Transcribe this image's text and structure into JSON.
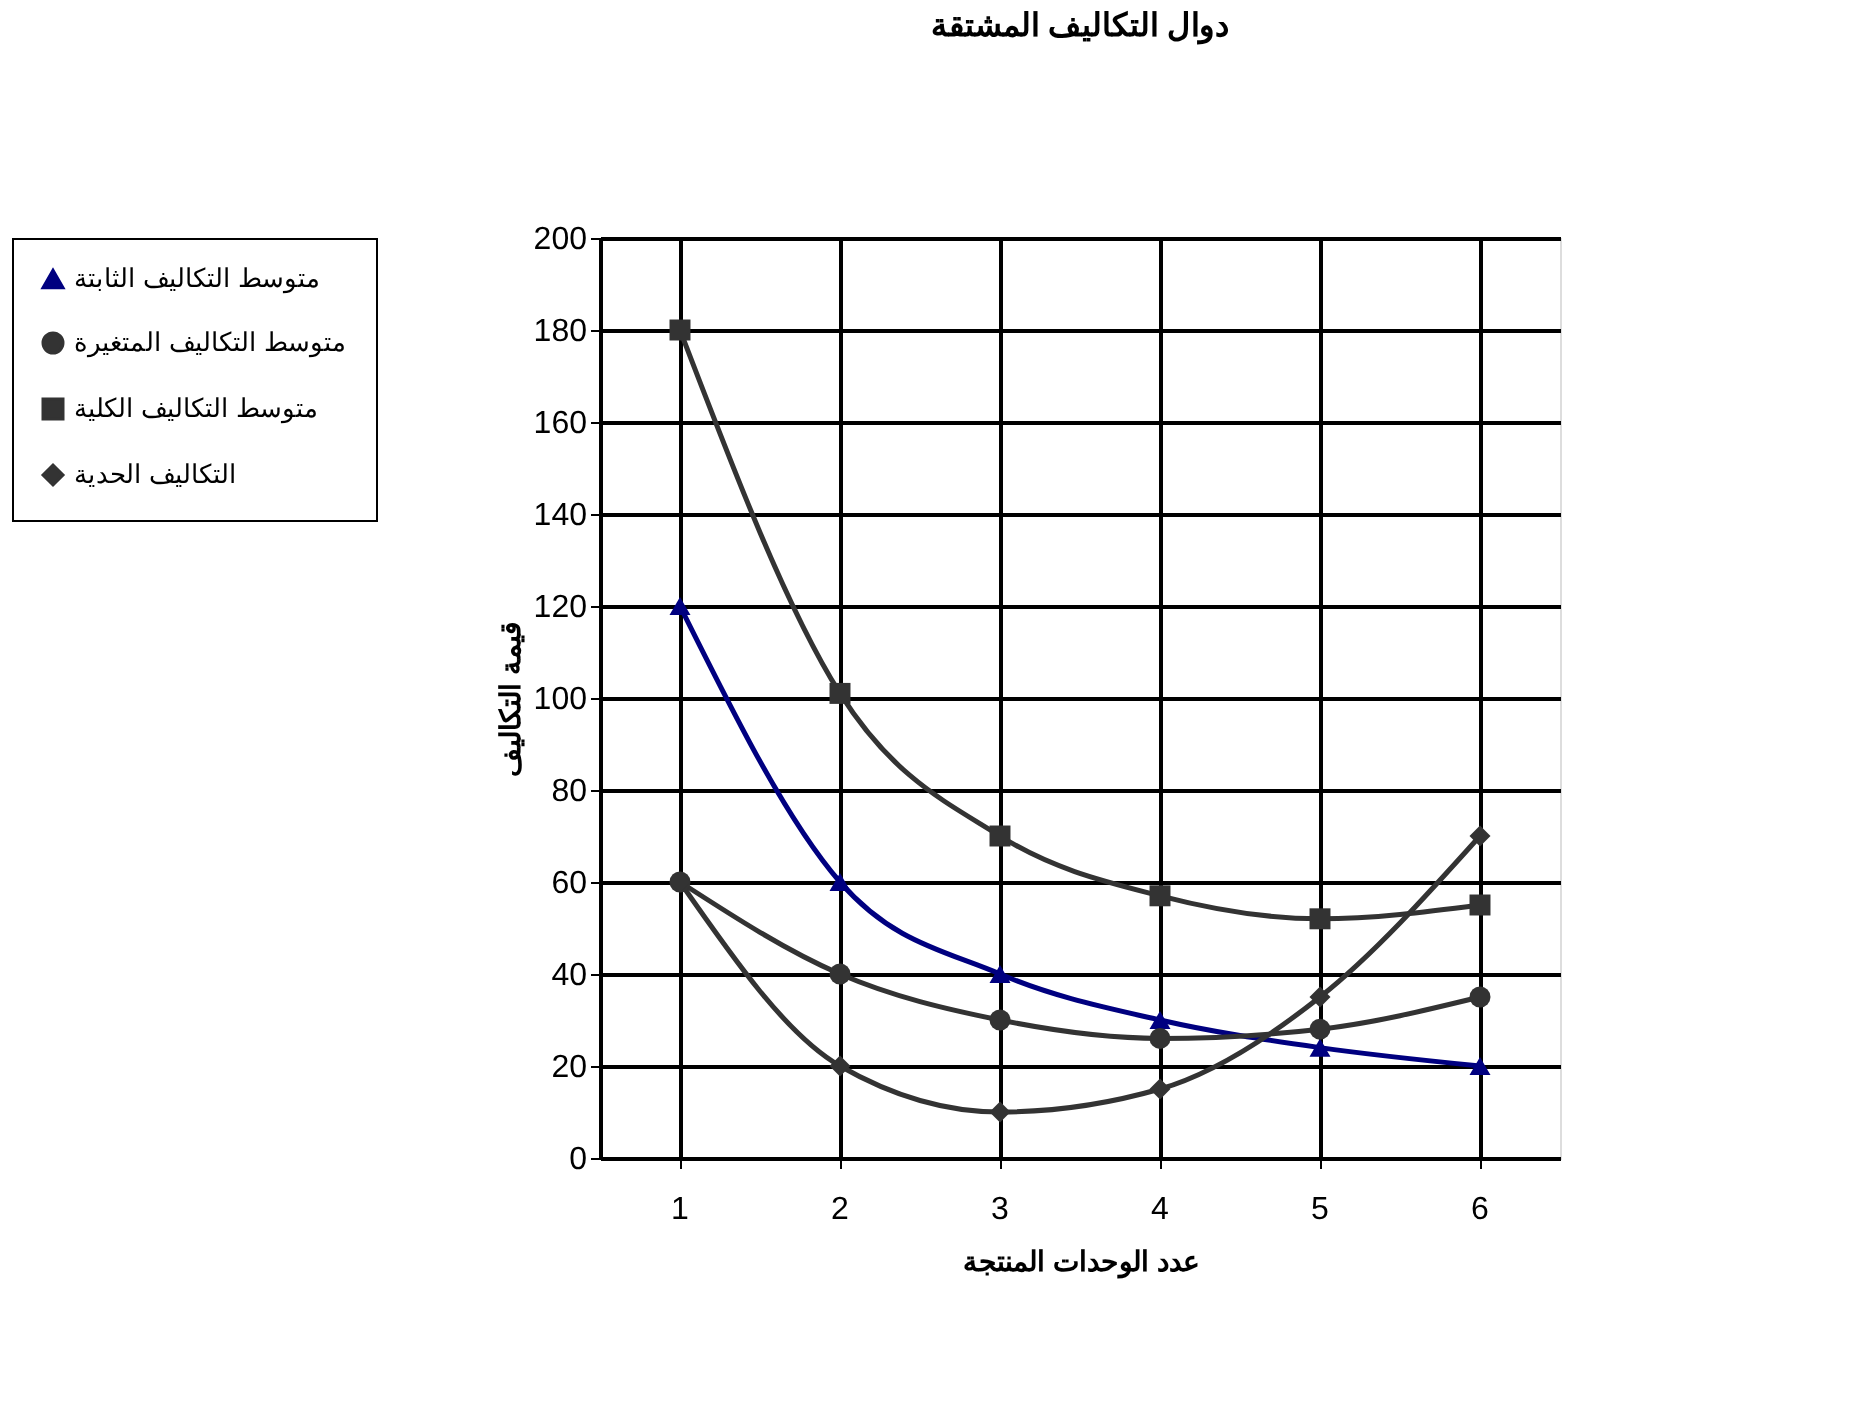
{
  "chart_data": {
    "type": "line",
    "title": "دوال التكاليف المشتقة",
    "xlabel": "عدد الوحدات المنتجة",
    "ylabel": "قيمة التكاليف",
    "categories": [
      "1",
      "2",
      "3",
      "4",
      "5",
      "6"
    ],
    "series": [
      {
        "name": "متوسط التكاليف الثابتة",
        "color": "#000080",
        "marker": "triangle",
        "values": [
          120,
          60,
          40,
          30,
          24,
          20
        ]
      },
      {
        "name": "متوسط التكاليف المتغيرة",
        "color": "#333333",
        "marker": "circle",
        "values": [
          60,
          40,
          30,
          26,
          28,
          35
        ]
      },
      {
        "name": "متوسط التكاليف الكلية",
        "color": "#333333",
        "marker": "square",
        "values": [
          180,
          101,
          70,
          57,
          52,
          55
        ]
      },
      {
        "name": "التكاليف الحدية",
        "color": "#333333",
        "marker": "diamond",
        "values": [
          60,
          20,
          10,
          15,
          35,
          70
        ]
      }
    ],
    "ylim": [
      0,
      200
    ],
    "yticks": [
      0,
      20,
      40,
      60,
      80,
      100,
      120,
      140,
      160,
      180,
      200
    ],
    "grid": true,
    "legend": "left",
    "line_style": "solid"
  }
}
